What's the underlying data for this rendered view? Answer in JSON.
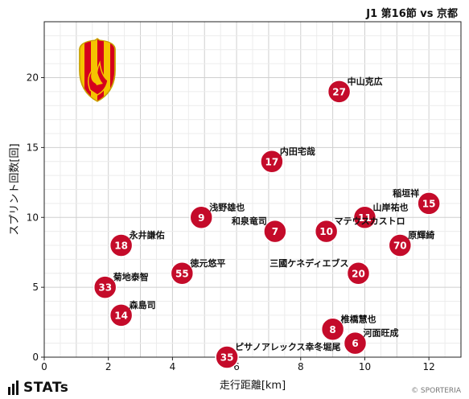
{
  "header": {
    "title": "J1 第16節 vs 京都"
  },
  "branding": {
    "stats_logo_text": "STATs",
    "copyright": "© SPORTERIA"
  },
  "colors": {
    "marker_fill": "#c40b2a",
    "marker_stroke": "#ffffff",
    "grid": "#d8d8d8",
    "badge_red": "#d6001c",
    "badge_yellow": "#f5c400"
  },
  "chart_data": {
    "type": "scatter",
    "xlabel": "走行距離[km]",
    "ylabel": "スプリント回数[回]",
    "xlim": [
      0,
      13
    ],
    "ylim": [
      0,
      24
    ],
    "xticks": [
      0,
      2,
      4,
      6,
      8,
      10,
      12
    ],
    "yticks": [
      0,
      5,
      10,
      15,
      20
    ],
    "grid": true,
    "points": [
      {
        "number": "27",
        "name": "中山克広",
        "x": 9.2,
        "y": 19
      },
      {
        "number": "17",
        "name": "内田宅哉",
        "x": 7.1,
        "y": 14
      },
      {
        "number": "15",
        "name": "稲垣祥",
        "x": 12.0,
        "y": 11
      },
      {
        "number": "9",
        "name": "浅野雄也",
        "x": 4.9,
        "y": 10
      },
      {
        "number": "11",
        "name": "山岸祐也",
        "x": 10.0,
        "y": 10
      },
      {
        "number": "7",
        "name": "和泉竜司",
        "x": 7.2,
        "y": 9
      },
      {
        "number": "10",
        "name": "マテウスカストロ",
        "x": 8.8,
        "y": 9
      },
      {
        "number": "18",
        "name": "永井謙佑",
        "x": 2.4,
        "y": 8
      },
      {
        "number": "70",
        "name": "原輝綺",
        "x": 11.1,
        "y": 8
      },
      {
        "number": "55",
        "name": "徳元悠平",
        "x": 4.3,
        "y": 6
      },
      {
        "number": "20",
        "name": "三國ケネディエブス",
        "x": 9.8,
        "y": 6
      },
      {
        "number": "33",
        "name": "菊地泰智",
        "x": 1.9,
        "y": 5
      },
      {
        "number": "14",
        "name": "森島司",
        "x": 2.4,
        "y": 3
      },
      {
        "number": "8",
        "name": "椎橋慧也",
        "x": 9.0,
        "y": 2
      },
      {
        "number": "6",
        "name": "河面旺成",
        "x": 9.7,
        "y": 1
      },
      {
        "number": "35",
        "name": "ピサノアレックス幸冬堀尾",
        "x": 5.7,
        "y": 0
      }
    ]
  }
}
